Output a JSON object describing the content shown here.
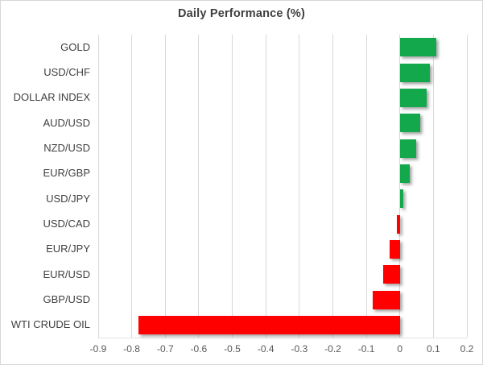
{
  "chart_data": {
    "type": "bar",
    "orientation": "horizontal",
    "title": "Daily Performance (%)",
    "categories": [
      "GOLD",
      "USD/CHF",
      "DOLLAR INDEX",
      "AUD/USD",
      "NZD/USD",
      "EUR/GBP",
      "USD/JPY",
      "USD/CAD",
      "EUR/JPY",
      "EUR/USD",
      "GBP/USD",
      "WTI CRUDE OIL"
    ],
    "values": [
      0.11,
      0.09,
      0.08,
      0.06,
      0.05,
      0.03,
      0.01,
      -0.01,
      -0.03,
      -0.05,
      -0.08,
      -0.78
    ],
    "xlabel": "",
    "ylabel": "",
    "xlim": [
      -0.9,
      0.2
    ],
    "xticks": [
      -0.9,
      -0.8,
      -0.7,
      -0.6,
      -0.5,
      -0.4,
      -0.3,
      -0.2,
      -0.1,
      0,
      0.1,
      0.2
    ],
    "xtick_labels": [
      "-0.9",
      "-0.8",
      "-0.7",
      "-0.6",
      "-0.5",
      "-0.4",
      "-0.3",
      "-0.2",
      "-0.1",
      "0",
      "0.1",
      "0.2"
    ],
    "grid": "vertical-on",
    "legend": "none",
    "colors": {
      "positive": "#14a84c",
      "negative": "#ff0000",
      "gridline": "#d9d9d9",
      "title_text": "#3f3f3f",
      "category_text": "#404040",
      "tick_text": "#595959"
    }
  }
}
